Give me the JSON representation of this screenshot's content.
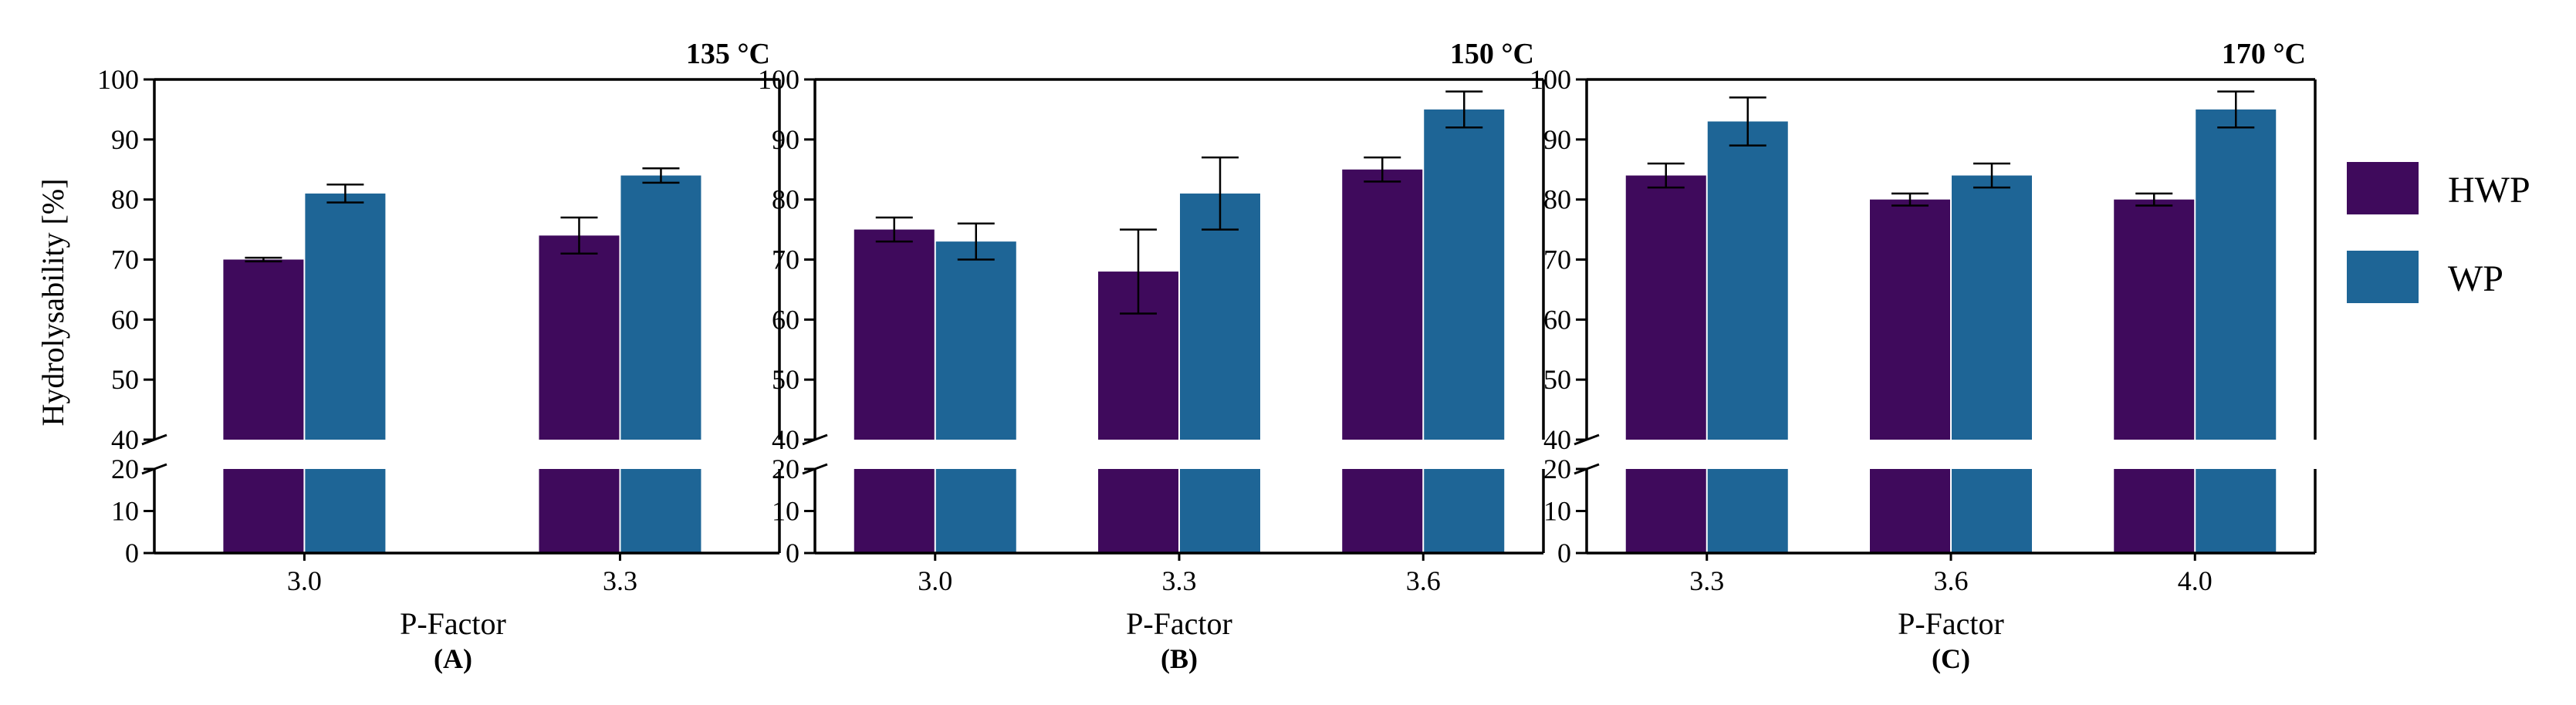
{
  "colors": {
    "hwp": "#3f0a5c",
    "wp": "#1e6596",
    "axis": "#000000",
    "background": "#ffffff"
  },
  "legend": {
    "placement": "right",
    "items": [
      {
        "label": "HWP",
        "color": "#3f0a5c"
      },
      {
        "label": "WP",
        "color": "#1e6596"
      }
    ]
  },
  "shared_ylabel": "Hydrolysability [%]",
  "chart_data": [
    {
      "type": "bar",
      "panel": "(A)",
      "temperature": "135 °C",
      "xlabel": "P-Factor",
      "ylabel": "Hydrolysability [%]",
      "categories": [
        "3.0",
        "3.3"
      ],
      "series": [
        {
          "name": "HWP",
          "values": [
            70,
            74
          ],
          "errors": [
            0.3,
            3
          ]
        },
        {
          "name": "WP",
          "values": [
            81,
            84
          ],
          "errors": [
            1.5,
            1.2
          ]
        }
      ],
      "ylim": [
        0,
        100
      ],
      "y_break": [
        20,
        40
      ],
      "yticks_lower": [
        0,
        10,
        20
      ],
      "yticks_upper": [
        40,
        50,
        60,
        70,
        80,
        90,
        100
      ],
      "grid": false
    },
    {
      "type": "bar",
      "panel": "(B)",
      "temperature": "150 °C",
      "xlabel": "P-Factor",
      "ylabel": "",
      "categories": [
        "3.0",
        "3.3",
        "3.6"
      ],
      "series": [
        {
          "name": "HWP",
          "values": [
            75,
            68,
            85
          ],
          "errors": [
            2,
            7,
            2
          ]
        },
        {
          "name": "WP",
          "values": [
            73,
            81,
            95
          ],
          "errors": [
            3,
            6,
            3
          ]
        }
      ],
      "ylim": [
        0,
        100
      ],
      "y_break": [
        20,
        40
      ],
      "yticks_lower": [
        0,
        10,
        20
      ],
      "yticks_upper": [
        40,
        50,
        60,
        70,
        80,
        90,
        100
      ],
      "grid": false
    },
    {
      "type": "bar",
      "panel": "(C)",
      "temperature": "170 °C",
      "xlabel": "P-Factor",
      "ylabel": "",
      "categories": [
        "3.3",
        "3.6",
        "4.0"
      ],
      "series": [
        {
          "name": "HWP",
          "values": [
            84,
            80,
            80
          ],
          "errors": [
            2,
            1,
            1
          ]
        },
        {
          "name": "WP",
          "values": [
            93,
            84,
            95
          ],
          "errors": [
            4,
            2,
            3
          ]
        }
      ],
      "ylim": [
        0,
        100
      ],
      "y_break": [
        20,
        40
      ],
      "yticks_lower": [
        0,
        10,
        20
      ],
      "yticks_upper": [
        40,
        50,
        60,
        70,
        80,
        90,
        100
      ],
      "grid": false
    }
  ]
}
